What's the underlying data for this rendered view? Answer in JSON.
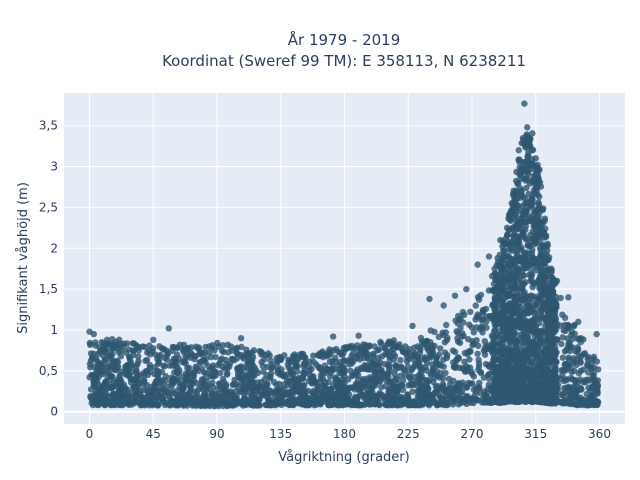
{
  "chart_data": {
    "type": "scatter",
    "title_line1": "År 1979 - 2019",
    "title_line2": "Koordinat (Sweref 99 TM): E 358113, N 6238211",
    "xlabel": "Vågriktning (grader)",
    "ylabel": "Signifikant våghöjd (m)",
    "xlim": [
      -18,
      378
    ],
    "ylim": [
      -0.15,
      3.9
    ],
    "x_ticks": [
      0,
      45,
      90,
      135,
      180,
      225,
      270,
      315,
      360
    ],
    "x_tick_labels": [
      "0",
      "45",
      "90",
      "135",
      "180",
      "225",
      "270",
      "315",
      "360"
    ],
    "y_ticks": [
      0,
      0.5,
      1,
      1.5,
      2,
      2.5,
      3,
      3.5
    ],
    "y_tick_labels": [
      "0",
      "0,5",
      "1",
      "1,5",
      "2",
      "2,5",
      "3",
      "3,5"
    ],
    "grid": true,
    "marker_color": "#2e5670",
    "plot_background": "#e5ecf6",
    "envelope": {
      "direction": [
        0,
        20,
        45,
        90,
        135,
        180,
        225,
        250,
        270,
        285,
        295,
        305,
        312,
        318,
        325,
        335,
        345,
        360
      ],
      "min_height": [
        0.08,
        0.08,
        0.08,
        0.07,
        0.08,
        0.08,
        0.08,
        0.08,
        0.1,
        0.1,
        0.12,
        0.12,
        0.12,
        0.12,
        0.1,
        0.1,
        0.08,
        0.08
      ],
      "max_height": [
        0.85,
        0.9,
        0.8,
        0.85,
        0.7,
        0.8,
        0.9,
        1.05,
        1.3,
        1.7,
        2.3,
        3.3,
        3.5,
        3.0,
        1.8,
        1.3,
        1.0,
        0.6
      ]
    },
    "outliers": [
      {
        "x": 0,
        "y": 0.98
      },
      {
        "x": 3,
        "y": 0.95
      },
      {
        "x": 45,
        "y": 0.88
      },
      {
        "x": 56,
        "y": 1.02
      },
      {
        "x": 107,
        "y": 0.9
      },
      {
        "x": 172,
        "y": 0.92
      },
      {
        "x": 190,
        "y": 0.93
      },
      {
        "x": 228,
        "y": 1.05
      },
      {
        "x": 240,
        "y": 1.38
      },
      {
        "x": 250,
        "y": 1.3
      },
      {
        "x": 258,
        "y": 1.42
      },
      {
        "x": 266,
        "y": 1.5
      },
      {
        "x": 274,
        "y": 1.8
      },
      {
        "x": 282,
        "y": 1.9
      },
      {
        "x": 290,
        "y": 2.1
      },
      {
        "x": 303,
        "y": 3.2
      },
      {
        "x": 306,
        "y": 3.35
      },
      {
        "x": 307,
        "y": 3.77
      },
      {
        "x": 309,
        "y": 3.48
      },
      {
        "x": 311,
        "y": 3.25
      },
      {
        "x": 315,
        "y": 3.1
      },
      {
        "x": 320,
        "y": 2.3
      },
      {
        "x": 326,
        "y": 1.75
      },
      {
        "x": 330,
        "y": 1.6
      },
      {
        "x": 338,
        "y": 1.4
      },
      {
        "x": 345,
        "y": 1.1
      },
      {
        "x": 358,
        "y": 0.95
      }
    ]
  }
}
